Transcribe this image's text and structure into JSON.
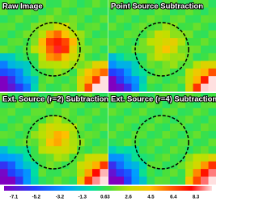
{
  "panels": [
    {
      "title": "Raw Image"
    },
    {
      "title": "Point Source Subtraction"
    },
    {
      "title": "Ext. Source (r=2) Subtraction"
    },
    {
      "title": "Ext. Source (r=4) Subtraction"
    }
  ],
  "colorbar": {
    "ticks": [
      -7.1,
      -5.2,
      -3.2,
      -1.3,
      0.63,
      2.6,
      4.5,
      6.4,
      8.3
    ]
  }
}
